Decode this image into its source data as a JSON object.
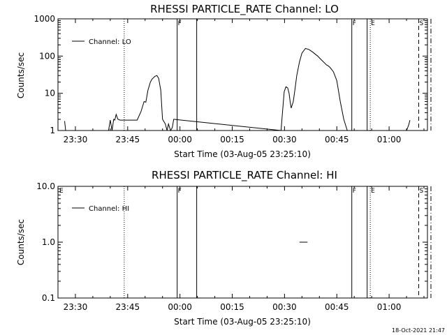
{
  "chart_data": [
    {
      "type": "line",
      "title": "RHESSI PARTICLE_RATE Channel: LO",
      "xlabel": "Start Time (03-Aug-05 23:25:10)",
      "ylabel": "Counts/sec",
      "y_scale": "log",
      "ylim": [
        1,
        1000
      ],
      "xlim_minutes_from_start": [
        -5,
        101
      ],
      "x_tick_labels": [
        "23:30",
        "23:45",
        "00:00",
        "00:15",
        "00:30",
        "00:45",
        "01:00"
      ],
      "y_tick_labels": [
        "1",
        "10",
        "100",
        "1000"
      ],
      "grid": false,
      "legend_position": "top-left",
      "series": [
        {
          "name": "Channel: LO",
          "x_minutes": [
            -5,
            -3.5,
            -3.1,
            -2.8,
            9.5,
            10.0,
            10.5,
            11.0,
            11.3,
            11.7,
            12.2,
            12.8,
            13.5,
            14.2,
            15.3,
            16.5,
            17.7,
            18.8,
            19.7,
            20.2,
            20.8,
            21.5,
            22.0,
            22.8,
            23.4,
            23.9,
            24.5,
            25.0,
            25.8,
            26.3,
            26.7,
            27.3,
            27.8,
            28.2,
            59.0,
            59.4,
            59.9,
            60.4,
            60.9,
            61.3,
            61.6,
            61.9,
            62.5,
            63.0,
            63.5,
            64.3,
            65.0,
            66.0,
            67.0,
            68.0,
            69.5,
            70.5,
            71.5,
            72.0,
            72.5,
            73.0,
            74.0,
            75.0,
            76.0,
            77.0,
            78.0,
            79.0,
            95.0,
            95.6,
            96.0,
            101.0
          ],
          "y_values": [
            null,
            null,
            1.8,
            1.0,
            1.0,
            1.9,
            1.0,
            2.0,
            1.9,
            2.7,
            2.0,
            1.9,
            1.9,
            1.9,
            1.9,
            1.9,
            1.9,
            3.2,
            6.0,
            5.8,
            12.0,
            20.0,
            24.0,
            28.5,
            30.0,
            25.0,
            12.0,
            2.0,
            1.5,
            1.0,
            1.5,
            1.0,
            1.2,
            2.0,
            1.0,
            3.0,
            11.0,
            15.0,
            14.0,
            10.0,
            6.0,
            4.0,
            6.0,
            13.0,
            30.0,
            70.0,
            120.0,
            160.0,
            150.0,
            130.0,
            100.0,
            80.0,
            65.0,
            58.0,
            55.0,
            50.0,
            38.0,
            22.0,
            6.0,
            2.0,
            1.0,
            1.0,
            1.0,
            1.4,
            1.9,
            null
          ]
        }
      ],
      "vertical_markers": [
        {
          "x_minutes": 14.0,
          "style": "dotted",
          "label": ""
        },
        {
          "x_minutes": 29.2,
          "style": "solid",
          "label": "F"
        },
        {
          "x_minutes": 34.8,
          "style": "solid",
          "label": ""
        },
        {
          "x_minutes": 79.3,
          "style": "solid",
          "label": "F"
        },
        {
          "x_minutes": 83.7,
          "style": "solid",
          "label": ""
        },
        {
          "x_minutes": 84.6,
          "style": "dotted",
          "label": "E"
        },
        {
          "x_minutes": 98.5,
          "style": "dashed",
          "label": "S"
        },
        {
          "x_minutes": 102.0,
          "style": "dashdot",
          "label": ""
        }
      ]
    },
    {
      "type": "line",
      "title": "RHESSI PARTICLE_RATE Channel: HI",
      "xlabel": "Start Time (03-Aug-05 23:25:10)",
      "ylabel": "Counts/sec",
      "y_scale": "log",
      "ylim": [
        0.1,
        10.0
      ],
      "xlim_minutes_from_start": [
        -5,
        101
      ],
      "x_tick_labels": [
        "23:30",
        "23:45",
        "00:00",
        "00:15",
        "00:30",
        "00:45",
        "01:00"
      ],
      "y_tick_labels": [
        "0.1",
        "1.0",
        "10.0"
      ],
      "grid": false,
      "legend_position": "top-left",
      "series": [
        {
          "name": "Channel: HI",
          "x_minutes": [
            64.3,
            66.6
          ],
          "y_values": [
            1.0,
            1.0
          ]
        }
      ],
      "vertical_markers": [
        {
          "x_minutes": -4.8,
          "style": "none",
          "label": "E"
        },
        {
          "x_minutes": 14.0,
          "style": "dotted",
          "label": ""
        },
        {
          "x_minutes": 29.2,
          "style": "solid",
          "label": "F"
        },
        {
          "x_minutes": 34.8,
          "style": "solid",
          "label": ""
        },
        {
          "x_minutes": 79.3,
          "style": "solid",
          "label": "F"
        },
        {
          "x_minutes": 83.7,
          "style": "solid",
          "label": ""
        },
        {
          "x_minutes": 84.6,
          "style": "dotted",
          "label": "E"
        },
        {
          "x_minutes": 98.5,
          "style": "dashed",
          "label": "S"
        },
        {
          "x_minutes": 102.0,
          "style": "dashdot",
          "label": ""
        }
      ]
    }
  ],
  "footer": {
    "stamp": "18-Oct-2021 21:47"
  }
}
